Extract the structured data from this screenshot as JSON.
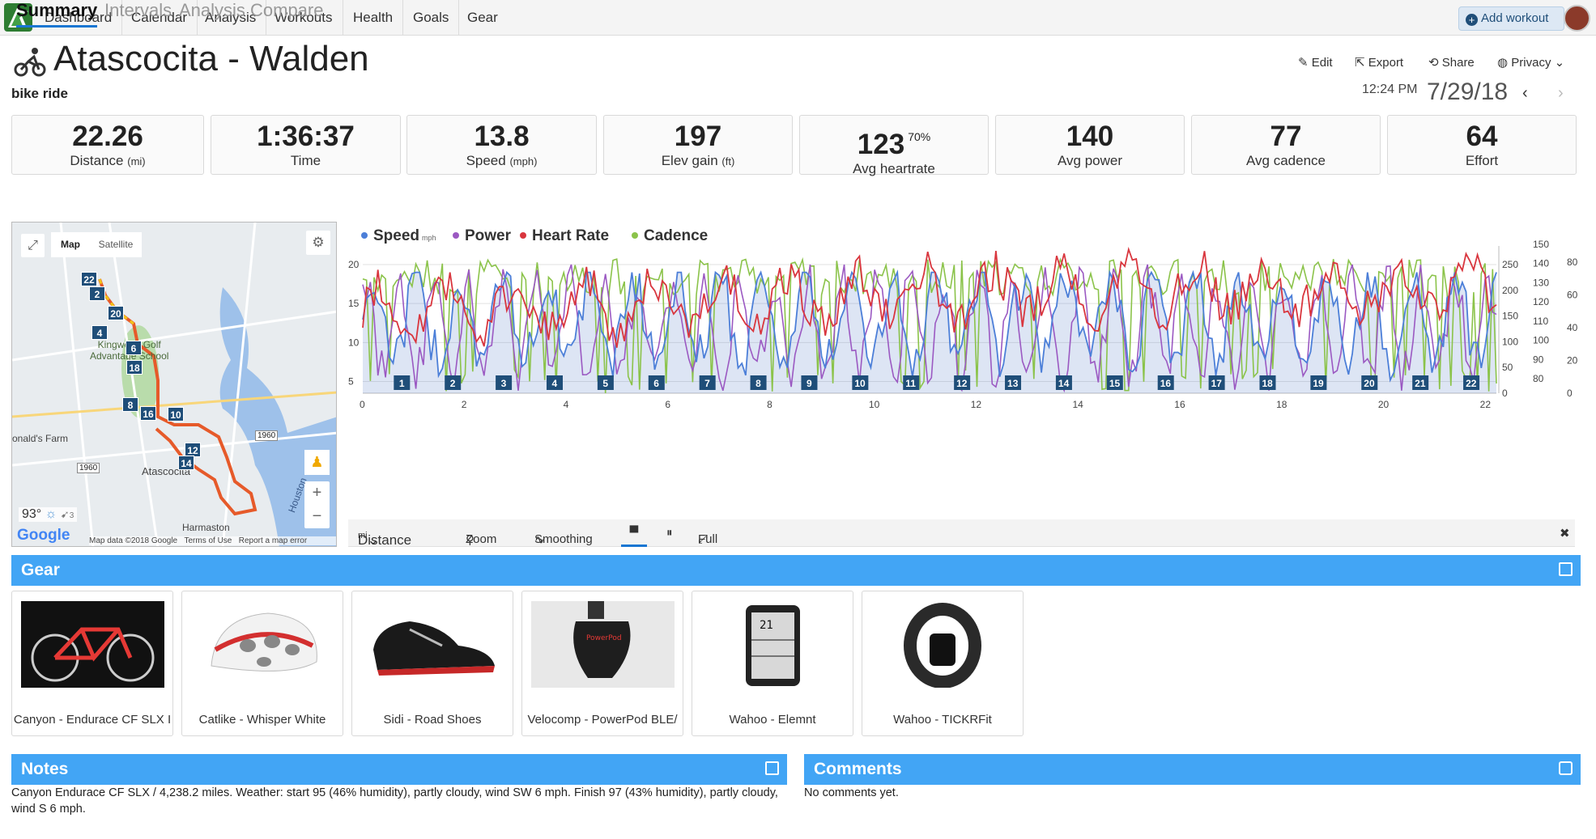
{
  "nav": {
    "items": [
      "Dashboard",
      "Calendar",
      "Analysis",
      "Workouts",
      "Health",
      "Goals",
      "Gear"
    ],
    "add_workout": "Add workout"
  },
  "workout": {
    "title": "Atascocita - Walden",
    "type": "bike ride",
    "time": "12:24 PM",
    "date": "7/29/18"
  },
  "actions": [
    "Edit",
    "Export",
    "Share",
    "Privacy"
  ],
  "stats": [
    {
      "value": "22.26",
      "label": "Distance",
      "unit": "(mi)"
    },
    {
      "value": "1:36:37",
      "label": "Time",
      "unit": ""
    },
    {
      "value": "13.8",
      "label": "Speed",
      "unit": "(mph)"
    },
    {
      "value": "197",
      "label": "Elev gain",
      "unit": "(ft)"
    },
    {
      "value": "123",
      "label": "Avg heartrate",
      "unit": "",
      "sup": "70%"
    },
    {
      "value": "140",
      "label": "Avg power",
      "unit": ""
    },
    {
      "value": "77",
      "label": "Avg cadence",
      "unit": ""
    },
    {
      "value": "64",
      "label": "Effort",
      "unit": ""
    }
  ],
  "tabs": [
    "Summary",
    "Intervals",
    "Analysis",
    "Compare"
  ],
  "map": {
    "map_button": "Map",
    "satellite_button": "Satellite",
    "labels": [
      "Kingwood Golf",
      "Advantage School",
      "Atascocita",
      "Harmaston",
      "onald's Farm",
      "Houston",
      "1960",
      "1960"
    ],
    "temperature": "93°",
    "wind": "3",
    "attribution": "Map data ©2018 Google",
    "terms": "Terms of Use",
    "report": "Report a map error",
    "google": "Google",
    "lap_markers": [
      "22",
      "2",
      "20",
      "4",
      "6",
      "18",
      "8",
      "16",
      "10",
      "12",
      "14"
    ]
  },
  "chart_data": {
    "type": "line",
    "legend": [
      "Speed",
      "Power",
      "Heart Rate",
      "Cadence"
    ],
    "speed_unit": "mph",
    "colors": {
      "Speed": "#4c7fd8",
      "Power": "#9b59c2",
      "Heart Rate": "#d9363e",
      "Cadence": "#8bc34a"
    },
    "x_label": "Distance",
    "x_unit": "mi",
    "x_ticks": [
      0,
      2,
      4,
      6,
      8,
      10,
      12,
      14,
      16,
      18,
      20,
      22
    ],
    "speed_ticks": [
      5,
      10,
      15,
      20
    ],
    "power_ticks": [
      50,
      100,
      150,
      200,
      250
    ],
    "hr_ticks": [
      80,
      90,
      100,
      110,
      120,
      130,
      140,
      150
    ],
    "cadence_ticks": [
      0,
      20,
      40,
      60,
      80
    ],
    "power_axis_extra": [
      0
    ],
    "lap_markers": [
      1,
      2,
      3,
      4,
      5,
      6,
      7,
      8,
      9,
      10,
      11,
      12,
      13,
      14,
      15,
      16,
      17,
      18,
      19,
      20,
      21,
      22
    ]
  },
  "toolbar": {
    "distance": "Distance",
    "unit": "mi",
    "zoom": "Zoom",
    "smoothing": "Smoothing",
    "full": "Full"
  },
  "gear": {
    "title": "Gear",
    "items": [
      "Canyon - Endurace CF SLX I",
      "Catlike - Whisper White",
      "Sidi - Road Shoes",
      "Velocomp - PowerPod BLE/",
      "Wahoo - Elemnt",
      "Wahoo - TICKRFit"
    ]
  },
  "notes": {
    "title": "Notes",
    "text": "Canyon Endurace CF SLX / 4,238.2 miles. Weather: start 95 (46% humidity), partly cloudy, wind SW 6 mph. Finish 97 (43% humidity), partly cloudy, wind S 6 mph."
  },
  "comments": {
    "title": "Comments",
    "text": "No comments yet."
  }
}
